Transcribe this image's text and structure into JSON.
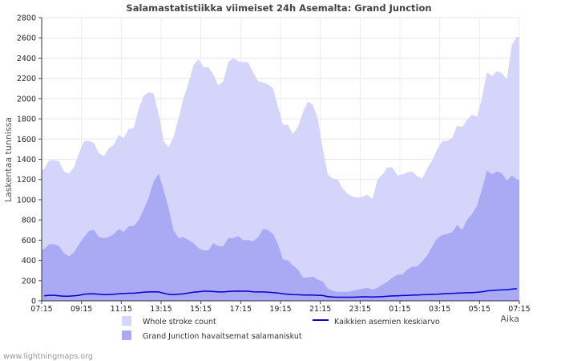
{
  "chart_data": {
    "type": "area",
    "title": "Salamastatistiikka viimeiset 24h Asemalta: Grand Junction",
    "ylabel": "Laskentaa tunnissa",
    "xlabel": "Aika",
    "ylim": [
      0,
      2800
    ],
    "y_ticks": [
      0,
      200,
      400,
      600,
      800,
      1000,
      1200,
      1400,
      1600,
      1800,
      2000,
      2200,
      2400,
      2600,
      2800
    ],
    "x_ticks": [
      "07:15",
      "09:15",
      "11:15",
      "13:15",
      "15:15",
      "17:15",
      "19:15",
      "21:15",
      "23:15",
      "01:15",
      "03:15",
      "05:15",
      "07:15"
    ],
    "interval_minutes": 15,
    "series": [
      {
        "name": "Whole stroke count",
        "color": "#d5d5fc",
        "values": [
          1300,
          1390,
          1390,
          1380,
          1280,
          1260,
          1320,
          1460,
          1580,
          1580,
          1560,
          1460,
          1430,
          1510,
          1540,
          1640,
          1610,
          1700,
          1710,
          1900,
          2030,
          2060,
          2050,
          1850,
          1580,
          1520,
          1620,
          1800,
          2000,
          2150,
          2330,
          2390,
          2310,
          2310,
          2240,
          2130,
          2170,
          2360,
          2400,
          2370,
          2360,
          2360,
          2260,
          2170,
          2160,
          2140,
          2100,
          1920,
          1740,
          1740,
          1650,
          1720,
          1860,
          1970,
          1940,
          1800,
          1500,
          1250,
          1210,
          1200,
          1110,
          1060,
          1030,
          1020,
          1030,
          1050,
          1010,
          1200,
          1250,
          1320,
          1320,
          1240,
          1250,
          1270,
          1280,
          1230,
          1210,
          1310,
          1390,
          1500,
          1580,
          1580,
          1610,
          1730,
          1720,
          1790,
          1840,
          1820,
          2010,
          2260,
          2220,
          2270,
          2250,
          2190,
          2530,
          2610
        ]
      },
      {
        "name": "Grand Junction havaitsemat salamaniskut",
        "color": "#aaaaf4",
        "values": [
          510,
          560,
          560,
          540,
          470,
          440,
          480,
          560,
          630,
          690,
          700,
          630,
          620,
          630,
          660,
          710,
          680,
          740,
          740,
          800,
          900,
          1020,
          1180,
          1260,
          1100,
          920,
          700,
          620,
          630,
          600,
          570,
          520,
          500,
          500,
          570,
          540,
          540,
          620,
          620,
          640,
          600,
          600,
          590,
          630,
          710,
          700,
          660,
          560,
          410,
          400,
          350,
          310,
          230,
          230,
          240,
          210,
          190,
          120,
          100,
          90,
          90,
          90,
          100,
          110,
          120,
          130,
          110,
          130,
          160,
          190,
          230,
          260,
          260,
          310,
          340,
          340,
          390,
          450,
          540,
          620,
          650,
          660,
          680,
          750,
          700,
          800,
          860,
          940,
          1100,
          1290,
          1250,
          1280,
          1260,
          1190,
          1240,
          1200
        ]
      },
      {
        "name": "Kaikkien asemien keskiarvo",
        "color": "#0000cc",
        "values": [
          50,
          55,
          55,
          50,
          45,
          45,
          50,
          55,
          65,
          68,
          70,
          65,
          62,
          62,
          65,
          70,
          72,
          75,
          75,
          80,
          85,
          88,
          90,
          88,
          75,
          65,
          62,
          65,
          70,
          78,
          85,
          90,
          95,
          95,
          92,
          88,
          88,
          92,
          95,
          96,
          95,
          95,
          90,
          88,
          88,
          85,
          82,
          78,
          70,
          65,
          62,
          60,
          58,
          57,
          56,
          55,
          52,
          42,
          38,
          36,
          36,
          36,
          36,
          38,
          40,
          40,
          38,
          40,
          42,
          45,
          48,
          50,
          52,
          54,
          56,
          58,
          60,
          62,
          64,
          66,
          70,
          72,
          74,
          76,
          78,
          80,
          82,
          84,
          90,
          98,
          102,
          106,
          108,
          110,
          116,
          120
        ]
      }
    ],
    "legend_position": "bottom"
  },
  "footer": {
    "text": "www.lightningmaps.org"
  }
}
